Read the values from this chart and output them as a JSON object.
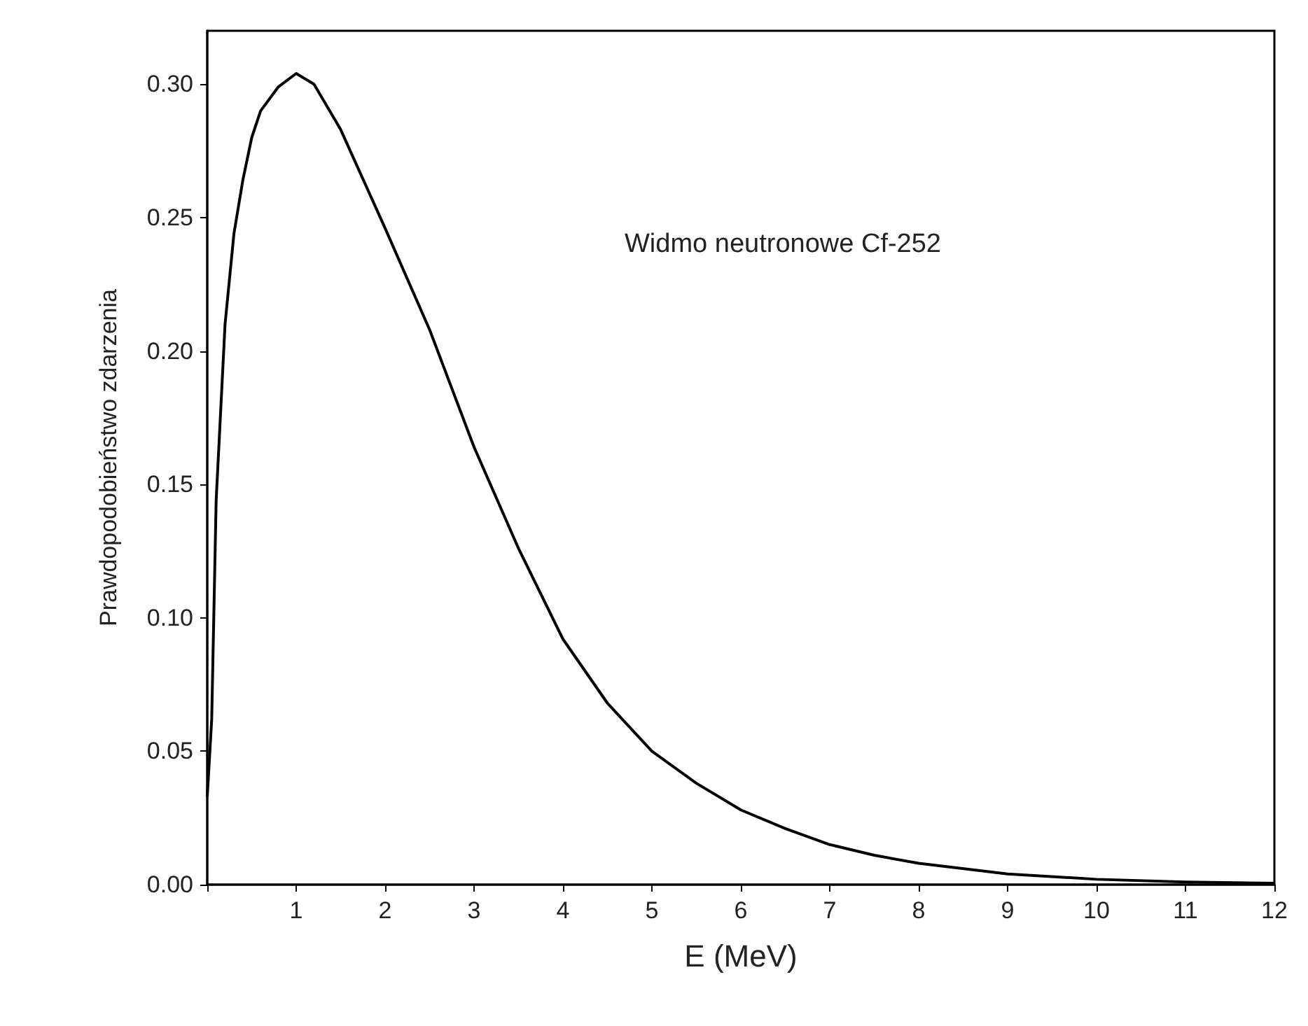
{
  "chart_data": {
    "type": "line",
    "xlabel": "E (MeV)",
    "ylabel": "Prawdopodobieństwo zdarzenia",
    "annotations": [
      "Widmo neutronowe Cf-252"
    ],
    "xlim": [
      0,
      12
    ],
    "xticks": [
      {
        "value": 0,
        "label": null
      },
      1,
      2,
      3,
      4,
      5,
      6,
      7,
      8,
      9,
      10,
      11,
      12
    ],
    "ylim": [
      0,
      0.32
    ],
    "yticks": [
      {
        "value": 0,
        "label": "0.00"
      },
      {
        "value": 0.05,
        "label": "0.05"
      },
      {
        "value": 0.1,
        "label": "0.10"
      },
      {
        "value": 0.15,
        "label": "0.15"
      },
      {
        "value": 0.2,
        "label": "0.20"
      },
      {
        "value": 0.25,
        "label": "0.25"
      },
      {
        "value": 0.3,
        "label": "0.30"
      }
    ],
    "grid": false,
    "marker": "none",
    "line_style": "solid",
    "series": [
      {
        "color": "#000000",
        "x": [
          0,
          0.05,
          0.1,
          0.2,
          0.3,
          0.4,
          0.5,
          0.6,
          0.8,
          1.0,
          1.2,
          1.5,
          2.0,
          2.5,
          3.0,
          3.5,
          4.0,
          4.5,
          5.0,
          5.5,
          6.0,
          6.5,
          7.0,
          7.5,
          8.0,
          9.0,
          10.0,
          11.0,
          12.0
        ],
        "values": [
          0.033,
          0.062,
          0.144,
          0.21,
          0.244,
          0.264,
          0.28,
          0.29,
          0.299,
          0.304,
          0.3,
          0.283,
          0.246,
          0.208,
          0.164,
          0.126,
          0.092,
          0.068,
          0.05,
          0.038,
          0.028,
          0.021,
          0.015,
          0.011,
          0.008,
          0.004,
          0.002,
          0.001,
          0.0005
        ]
      }
    ]
  }
}
